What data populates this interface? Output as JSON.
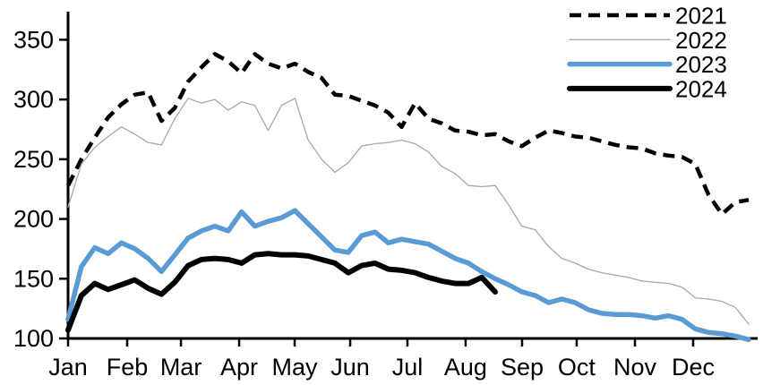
{
  "chart_data": {
    "type": "line",
    "title": "",
    "xlabel": "",
    "ylabel": "",
    "x_axis": {
      "tick_labels": [
        "Jan",
        "Feb",
        "Mar",
        "Apr",
        "May",
        "Jun",
        "Jul",
        "Aug",
        "Sep",
        "Oct",
        "Nov",
        "Dec"
      ],
      "tick_weeks": [
        1,
        5.43,
        9.46,
        13.82,
        17.98,
        22.14,
        26.43,
        30.79,
        35.02,
        39.11,
        43.48,
        47.84
      ],
      "unit": "week-of-year"
    },
    "y_axis": {
      "ticks": [
        100,
        150,
        200,
        250,
        300,
        350
      ],
      "ylim": [
        100,
        350
      ],
      "grid": false
    },
    "legend": {
      "position": "top-right",
      "entries": [
        "2021",
        "2022",
        "2023",
        "2024"
      ]
    },
    "series": [
      {
        "name": "2021",
        "color": "#000000",
        "style": "dashed",
        "width": 4.5,
        "values": [
          228,
          250,
          268,
          285,
          296,
          304,
          306,
          282,
          293,
          315,
          327,
          338,
          332,
          322,
          338,
          330,
          326,
          330,
          323,
          318,
          304,
          303,
          299,
          295,
          289,
          277,
          297,
          284,
          280,
          274,
          273,
          270,
          271,
          265,
          261,
          268,
          274,
          272,
          269,
          268,
          265,
          262,
          260,
          259,
          255,
          253,
          252,
          246,
          220,
          204,
          214,
          216
        ]
      },
      {
        "name": "2022",
        "color": "#a8a8a8",
        "style": "solid",
        "width": 1.3,
        "values": [
          210,
          246,
          260,
          269,
          277,
          271,
          264,
          262,
          284,
          301,
          297,
          300,
          291,
          298,
          295,
          274,
          295,
          301,
          266,
          250,
          239,
          247,
          261,
          263,
          264,
          266,
          263,
          256,
          244,
          238,
          228,
          227,
          228,
          212,
          194,
          191,
          177,
          167,
          163,
          158,
          155,
          153,
          151,
          148,
          147,
          146,
          143,
          134,
          133,
          131,
          126,
          112
        ]
      },
      {
        "name": "2023",
        "color": "#5b9bd5",
        "style": "solid",
        "width": 5.5,
        "values": [
          116,
          160,
          176,
          171,
          180,
          175,
          167,
          156,
          170,
          184,
          190,
          194,
          190,
          206,
          194,
          198,
          201,
          207,
          196,
          185,
          174,
          172,
          186,
          189,
          180,
          183,
          181,
          179,
          173,
          167,
          163,
          156,
          150,
          145,
          139,
          136,
          130,
          133,
          130,
          124,
          121,
          120,
          120,
          119,
          117,
          119,
          116,
          108,
          105,
          104,
          102,
          99
        ]
      },
      {
        "name": "2024",
        "color": "#000000",
        "style": "solid",
        "width": 6,
        "values": [
          107,
          136,
          146,
          141,
          145,
          149,
          142,
          137,
          147,
          161,
          166,
          167,
          166,
          163,
          170,
          171,
          170,
          170,
          169,
          166,
          163,
          155,
          161,
          163,
          158,
          157,
          155,
          151,
          148,
          146,
          146,
          151,
          139
        ]
      }
    ]
  }
}
